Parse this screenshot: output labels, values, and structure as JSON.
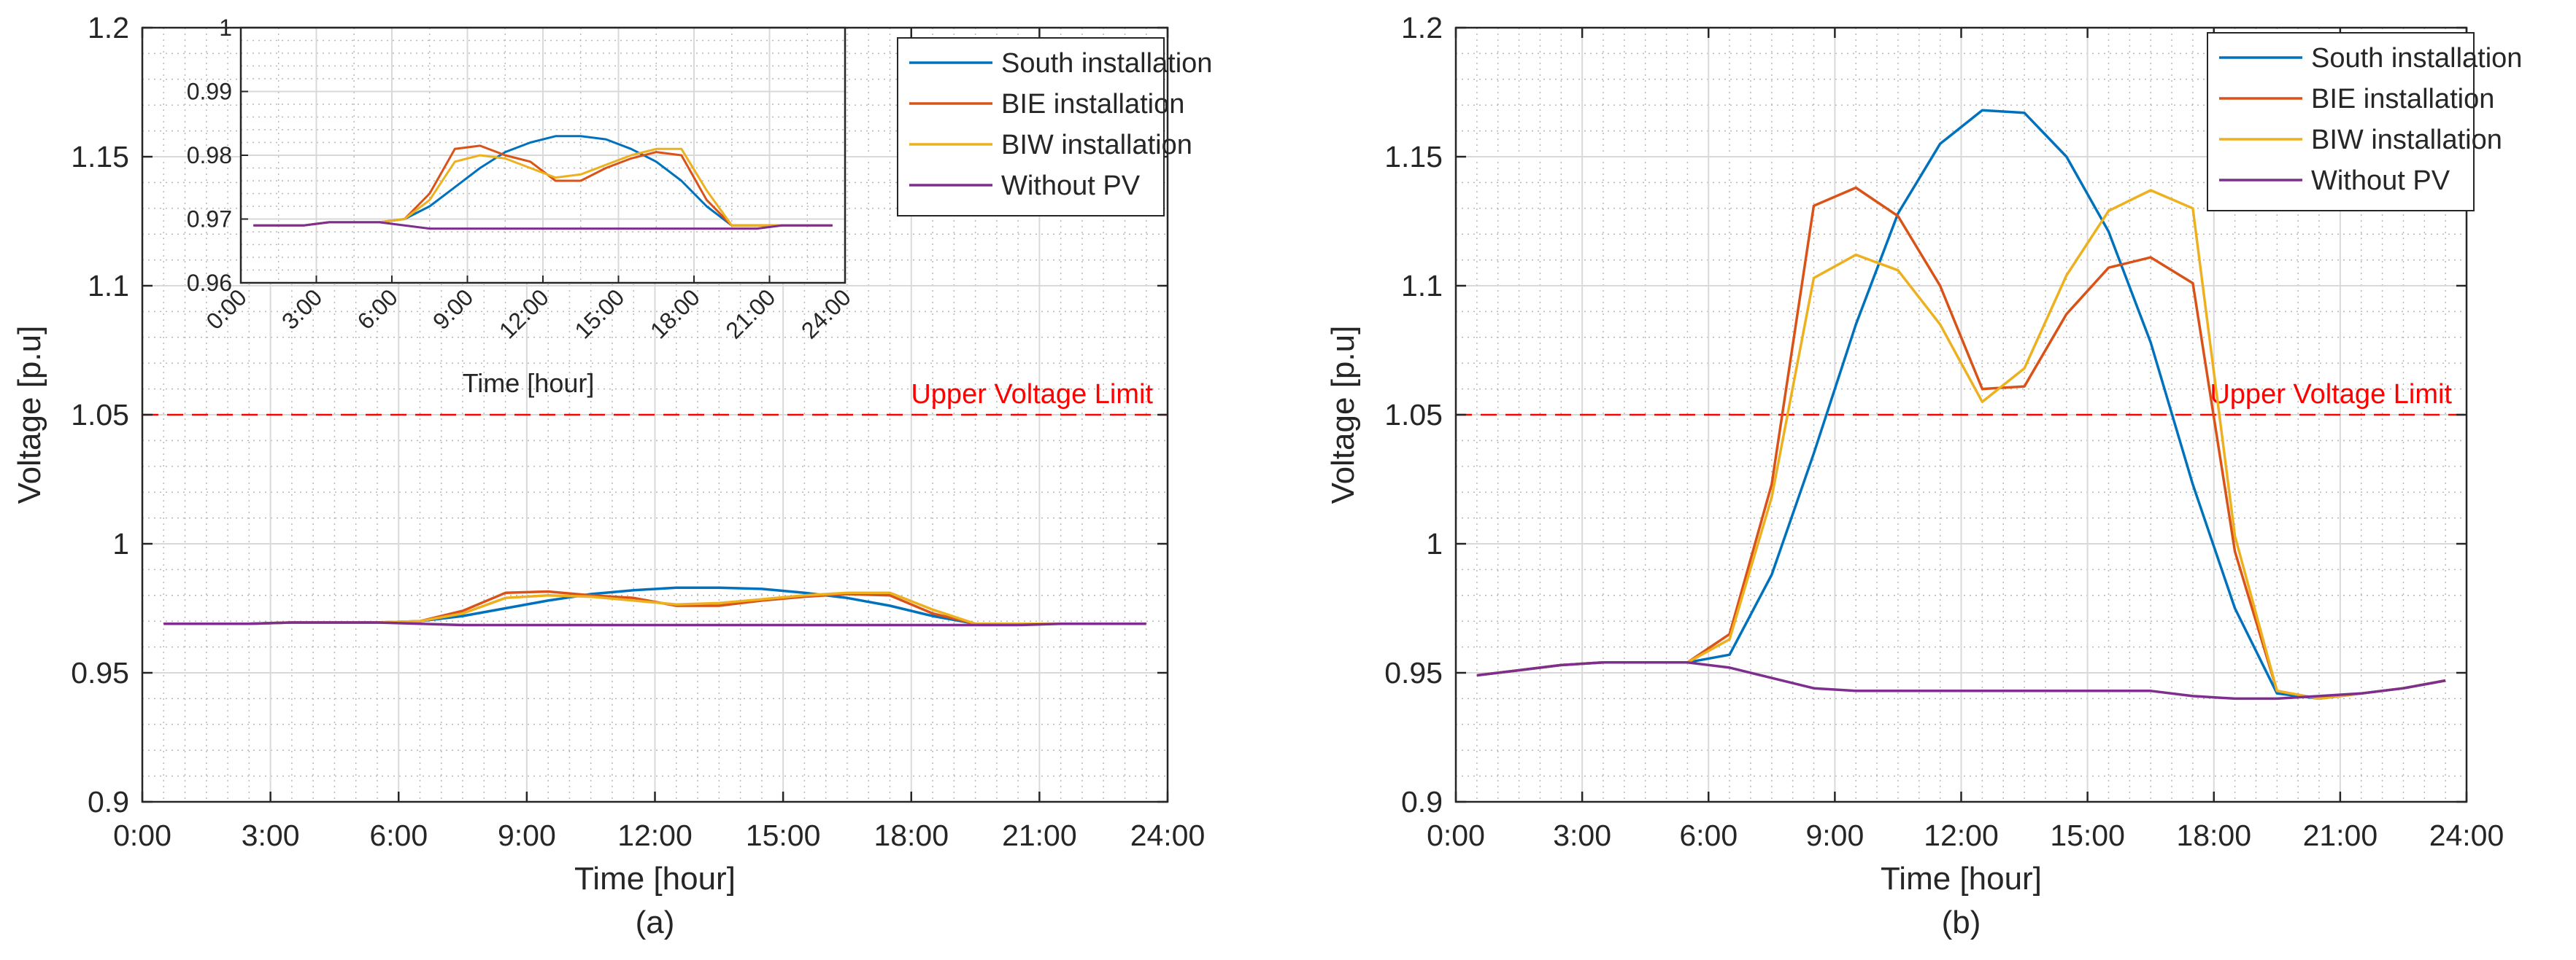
{
  "colors": {
    "south": "#0072BD",
    "bie": "#D95319",
    "biw": "#EDB120",
    "without": "#7E2F8E",
    "limit": "#FF0000",
    "grid": "#D9D9D9",
    "minor_grid": "#B8B8B8",
    "axis": "#262626"
  },
  "chart_data": [
    {
      "id": "a",
      "type": "line",
      "panel_label": "(a)",
      "xlabel": "Time [hour]",
      "ylabel": "Voltage [p.u]",
      "xlim": [
        0,
        24
      ],
      "ylim": [
        0.9,
        1.2
      ],
      "xticks": [
        0,
        3,
        6,
        9,
        12,
        15,
        18,
        21,
        24
      ],
      "xtick_labels": [
        "0:00",
        "3:00",
        "6:00",
        "9:00",
        "12:00",
        "15:00",
        "18:00",
        "21:00",
        "24:00"
      ],
      "yticks": [
        0.9,
        0.95,
        1.0,
        1.05,
        1.1,
        1.15,
        1.2
      ],
      "ytick_labels": [
        "0.9",
        "0.95",
        "1",
        "1.05",
        "1.1",
        "1.15",
        "1.2"
      ],
      "grid": true,
      "limit": {
        "value": 1.05,
        "label": "Upper Voltage Limit"
      },
      "legend": {
        "position": "top-right",
        "entries": [
          "South installation",
          "BIE installation",
          "BIW installation",
          "Without PV"
        ]
      },
      "x": [
        0.5,
        1.5,
        2.5,
        3.5,
        4.5,
        5.5,
        6.5,
        7.5,
        8.5,
        9.5,
        10.5,
        11.5,
        12.5,
        13.5,
        14.5,
        15.5,
        16.5,
        17.5,
        18.5,
        19.5,
        20.5,
        21.5,
        22.5,
        23.5
      ],
      "series": [
        {
          "key": "south",
          "name": "South installation",
          "values": [
            0.969,
            0.969,
            0.969,
            0.9695,
            0.9695,
            0.9695,
            0.97,
            0.972,
            0.975,
            0.978,
            0.9805,
            0.982,
            0.983,
            0.983,
            0.9825,
            0.981,
            0.979,
            0.976,
            0.972,
            0.969,
            0.969,
            0.969,
            0.969,
            0.969
          ]
        },
        {
          "key": "bie",
          "name": "BIE installation",
          "values": [
            0.969,
            0.969,
            0.969,
            0.9695,
            0.9695,
            0.9695,
            0.97,
            0.974,
            0.981,
            0.9815,
            0.98,
            0.979,
            0.976,
            0.976,
            0.978,
            0.9795,
            0.9805,
            0.98,
            0.973,
            0.969,
            0.969,
            0.969,
            0.969,
            0.969
          ]
        },
        {
          "key": "biw",
          "name": "BIW installation",
          "values": [
            0.969,
            0.969,
            0.969,
            0.9695,
            0.9695,
            0.9695,
            0.97,
            0.973,
            0.979,
            0.98,
            0.9795,
            0.978,
            0.9765,
            0.977,
            0.9785,
            0.98,
            0.981,
            0.981,
            0.9745,
            0.969,
            0.969,
            0.969,
            0.969,
            0.969
          ]
        },
        {
          "key": "without",
          "name": "Without PV",
          "values": [
            0.969,
            0.969,
            0.969,
            0.9695,
            0.9695,
            0.9695,
            0.969,
            0.9685,
            0.9685,
            0.9685,
            0.9685,
            0.9685,
            0.9685,
            0.9685,
            0.9685,
            0.9685,
            0.9685,
            0.9685,
            0.9685,
            0.9685,
            0.9685,
            0.969,
            0.969,
            0.969
          ]
        }
      ],
      "inset": {
        "xlabel": "Time [hour]",
        "xlim": [
          0,
          24
        ],
        "ylim": [
          0.96,
          1.0
        ],
        "xticks": [
          0,
          3,
          6,
          9,
          12,
          15,
          18,
          21,
          24
        ],
        "xtick_labels": [
          "0:00",
          "3:00",
          "6:00",
          "9:00",
          "12:00",
          "15:00",
          "18:00",
          "21:00",
          "24:00"
        ],
        "yticks": [
          0.96,
          0.97,
          0.98,
          0.99,
          1.0
        ],
        "ytick_labels": [
          "0.96",
          "0.97",
          "0.98",
          "0.99",
          "1"
        ]
      }
    },
    {
      "id": "b",
      "type": "line",
      "panel_label": "(b)",
      "xlabel": "Time [hour]",
      "ylabel": "Voltage [p.u]",
      "xlim": [
        0,
        24
      ],
      "ylim": [
        0.9,
        1.2
      ],
      "xticks": [
        0,
        3,
        6,
        9,
        12,
        15,
        18,
        21,
        24
      ],
      "xtick_labels": [
        "0:00",
        "3:00",
        "6:00",
        "9:00",
        "12:00",
        "15:00",
        "18:00",
        "21:00",
        "24:00"
      ],
      "yticks": [
        0.9,
        0.95,
        1.0,
        1.05,
        1.1,
        1.15,
        1.2
      ],
      "ytick_labels": [
        "0.9",
        "0.95",
        "1",
        "1.05",
        "1.1",
        "1.15",
        "1.2"
      ],
      "grid": true,
      "limit": {
        "value": 1.05,
        "label": "Upper Voltage Limit"
      },
      "legend": {
        "position": "top-right",
        "entries": [
          "South installation",
          "BIE installation",
          "BIW installation",
          "Without PV"
        ]
      },
      "x": [
        0.5,
        1.5,
        2.5,
        3.5,
        4.5,
        5.5,
        6.5,
        7.5,
        8.5,
        9.5,
        10.5,
        11.5,
        12.5,
        13.5,
        14.5,
        15.5,
        16.5,
        17.5,
        18.5,
        19.5,
        20.5,
        21.5,
        22.5,
        23.5
      ],
      "series": [
        {
          "key": "south",
          "name": "South installation",
          "values": [
            0.949,
            0.951,
            0.953,
            0.954,
            0.954,
            0.954,
            0.957,
            0.988,
            1.035,
            1.085,
            1.128,
            1.155,
            1.168,
            1.167,
            1.15,
            1.121,
            1.078,
            1.023,
            0.975,
            0.942,
            0.94,
            0.942,
            0.944,
            0.947
          ]
        },
        {
          "key": "bie",
          "name": "BIE installation",
          "values": [
            0.949,
            0.951,
            0.953,
            0.954,
            0.954,
            0.954,
            0.965,
            1.023,
            1.131,
            1.138,
            1.127,
            1.1,
            1.06,
            1.061,
            1.089,
            1.107,
            1.111,
            1.101,
            0.997,
            0.943,
            0.94,
            0.942,
            0.944,
            0.947
          ]
        },
        {
          "key": "biw",
          "name": "BIW installation",
          "values": [
            0.949,
            0.951,
            0.953,
            0.954,
            0.954,
            0.954,
            0.963,
            1.018,
            1.103,
            1.112,
            1.106,
            1.085,
            1.055,
            1.068,
            1.104,
            1.129,
            1.137,
            1.13,
            1.003,
            0.943,
            0.94,
            0.942,
            0.944,
            0.947
          ]
        },
        {
          "key": "without",
          "name": "Without PV",
          "values": [
            0.949,
            0.951,
            0.953,
            0.954,
            0.954,
            0.954,
            0.952,
            0.948,
            0.944,
            0.943,
            0.943,
            0.943,
            0.943,
            0.943,
            0.943,
            0.943,
            0.943,
            0.941,
            0.94,
            0.94,
            0.941,
            0.942,
            0.944,
            0.947
          ]
        }
      ]
    }
  ]
}
